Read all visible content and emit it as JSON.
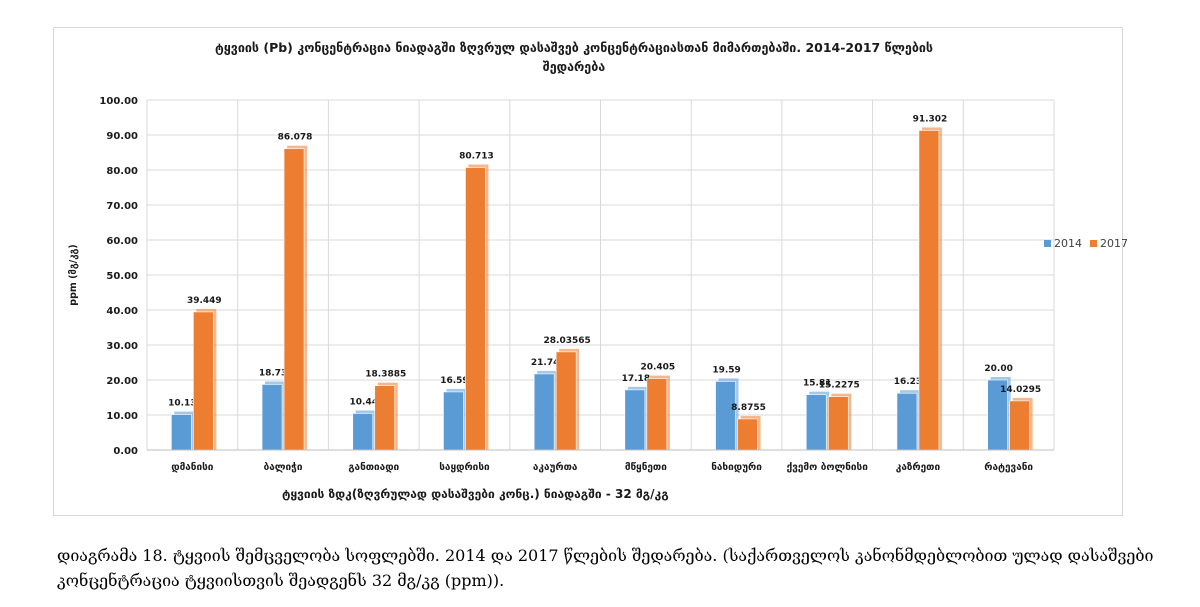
{
  "chart_data": {
    "type": "bar",
    "title": "ტყვიის (Pb) კონცენტრაცია ნიადაგში ზღვრულ დასაშვებ კონცენტრაციასთან მიმართებაში. 2014-2017 წლების შედარება",
    "ylabel": "ppm (მგ/კგ)",
    "xlabel": "",
    "ylim": [
      0,
      100
    ],
    "yticks": [
      "0.00",
      "10.00",
      "20.00",
      "30.00",
      "40.00",
      "50.00",
      "60.00",
      "70.00",
      "80.00",
      "90.00",
      "100.00"
    ],
    "grid": true,
    "legend_position": "right",
    "categories": [
      "დმანისი",
      "ბალიჭი",
      "განთიადი",
      "საყდრისი",
      "აკაურთა",
      "მწყნეთი",
      "ნახიდური",
      "ქვემო ბოლნისი",
      "კაზრეთი",
      "რატევანი"
    ],
    "series": [
      {
        "name": "2014",
        "color": "#5b9bd5",
        "values": [
          10.13,
          18.73,
          10.44,
          16.59,
          21.74,
          17.18,
          19.59,
          15.81,
          16.23,
          20.0
        ],
        "labels": [
          "10.13",
          "18.73",
          "10.44",
          "16.59",
          "21.74",
          "17.18",
          "19.59",
          "15.81",
          "16.23",
          "20.00"
        ]
      },
      {
        "name": "2017",
        "color": "#ed7d31",
        "values": [
          39.449,
          86.078,
          18.3885,
          80.713,
          28.03565,
          20.405,
          8.8755,
          15.2275,
          91.302,
          14.0295
        ],
        "labels": [
          "39.449",
          "86.078",
          "18.3885",
          "80.713",
          "28.03565",
          "20.405",
          "8.8755",
          "15.2275",
          "91.302",
          "14.0295"
        ]
      }
    ]
  },
  "bottom_note": "ტყვიის ზდკ(ზღვრულად დასაშვები კონც.) ნიადაგში - 32 მგ/კგ",
  "caption": "დიაგრამა 18. ტყვიის შემცველობა სოფლებში. 2014 და 2017 წლების შედარება. (საქართველოს კანონმდებლობით ულად დასაშვები კონცენტრაცია ტყვიისთვის შეადგენს 32 მგ/კგ (ppm))."
}
